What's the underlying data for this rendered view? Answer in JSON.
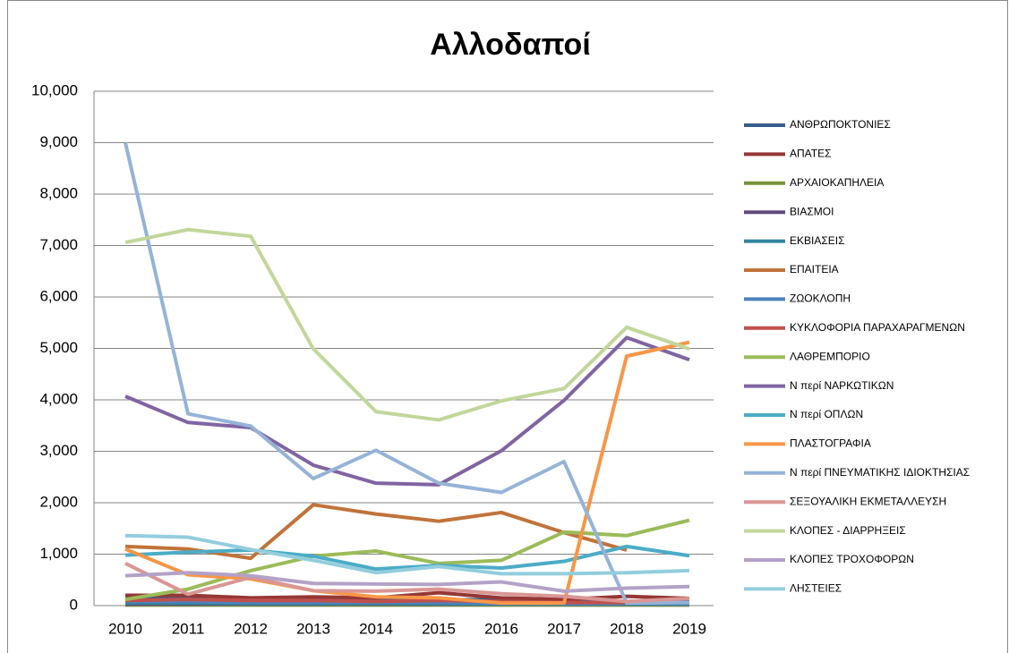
{
  "chart_data": {
    "type": "line",
    "title": "Αλλοδαποί",
    "categories": [
      "2010",
      "2011",
      "2012",
      "2013",
      "2014",
      "2015",
      "2016",
      "2017",
      "2018",
      "2019"
    ],
    "ylim": [
      0,
      10000
    ],
    "yticks": [
      0,
      {
        "value": 1000,
        "label": "1,000"
      },
      {
        "value": 2000,
        "label": "2,000"
      },
      {
        "value": 3000,
        "label": "3,000"
      },
      {
        "value": 4000,
        "label": "4,000"
      },
      {
        "value": 5000,
        "label": "5,000"
      },
      {
        "value": 6000,
        "label": "6,000"
      },
      {
        "value": 7000,
        "label": "7,000"
      },
      {
        "value": 8000,
        "label": "8,000"
      },
      {
        "value": 9000,
        "label": "9,000"
      },
      {
        "value": 10000,
        "label": "10,000"
      }
    ],
    "grid": true,
    "legend": "right",
    "series": [
      {
        "name": "ΑΝΘΡΩΠΟΚΤΟΝΙΕΣ",
        "color": "#385d8a",
        "values": [
          150,
          150,
          120,
          130,
          120,
          110,
          120,
          100,
          40,
          80
        ]
      },
      {
        "name": "ΑΠΑΤΕΣ",
        "color": "#953735",
        "values": [
          200,
          200,
          150,
          170,
          150,
          250,
          150,
          120,
          180,
          140
        ]
      },
      {
        "name": "ΑΡΧΑΙΟΚΑΠΗΛΕΙΑ",
        "color": "#77933c",
        "values": [
          10,
          10,
          10,
          10,
          10,
          10,
          10,
          10,
          10,
          10
        ]
      },
      {
        "name": "ΒΙΑΣΜΟΙ",
        "color": "#604a7b",
        "values": [
          30,
          30,
          30,
          30,
          30,
          30,
          30,
          30,
          30,
          30
        ]
      },
      {
        "name": "ΕΚΒΙΑΣΕΙΣ",
        "color": "#31859c",
        "values": [
          50,
          50,
          40,
          40,
          40,
          40,
          30,
          30,
          30,
          30
        ]
      },
      {
        "name": "ΕΠΑΙΤΕΙΑ",
        "color": "#c0733a",
        "values": [
          1150,
          1100,
          920,
          1960,
          1780,
          1640,
          1810,
          1420,
          1080,
          null
        ]
      },
      {
        "name": "ΖΩΟΚΛΟΠΗ",
        "color": "#4f81bd",
        "values": [
          80,
          80,
          60,
          60,
          60,
          60,
          40,
          40,
          40,
          40
        ]
      },
      {
        "name": "ΚΥΚΛΟΦΟΡΙΑ ΠΑΡΑΧΑΡΑΓΜΕΝΩΝ",
        "color": "#c0504d",
        "values": [
          100,
          120,
          100,
          100,
          80,
          100,
          80,
          60,
          60,
          60
        ]
      },
      {
        "name": "ΛΑΘΡΕΜΠΟΡΙΟ",
        "color": "#9bbb59",
        "values": [
          120,
          320,
          680,
          960,
          1060,
          820,
          880,
          1430,
          1360,
          1660
        ]
      },
      {
        "name": "Ν περί ΝΑΡΚΩΤΙΚΩΝ",
        "color": "#8064a2",
        "values": [
          4070,
          3560,
          3460,
          2730,
          2380,
          2350,
          3010,
          3990,
          5210,
          4780
        ]
      },
      {
        "name": "Ν περί ΟΠΛΩΝ",
        "color": "#4bacc6",
        "values": [
          980,
          1040,
          1080,
          960,
          710,
          780,
          730,
          860,
          1150,
          970
        ]
      },
      {
        "name": "ΠΛΑΣΤΟΓΡΑΦΙΑ",
        "color": "#f79646",
        "values": [
          1100,
          600,
          520,
          290,
          170,
          150,
          50,
          50,
          4850,
          5120
        ]
      },
      {
        "name": "Ν περί ΠΝΕΥΜΑΤΙΚΗΣ  ΙΔΙΟΚΤΗΣΙΑΣ",
        "color": "#95b3d7",
        "values": [
          9000,
          3730,
          3490,
          2470,
          3020,
          2380,
          2200,
          2800,
          50,
          60
        ]
      },
      {
        "name": "ΣΕΞΟΥΑΛΙΚΗ  ΕΚΜΕΤΑΛΛΕΥΣΗ",
        "color": "#d99694",
        "values": [
          820,
          220,
          550,
          290,
          280,
          320,
          230,
          180,
          80,
          140
        ]
      },
      {
        "name": "ΚΛΟΠΕΣ - ΔΙΑΡΡΗΞΕΙΣ",
        "color": "#c3d69b",
        "values": [
          7060,
          7310,
          7180,
          4990,
          3770,
          3610,
          3980,
          4220,
          5410,
          4990
        ]
      },
      {
        "name": "ΚΛΟΠΕΣ ΤΡΟΧΟΦΟΡΩΝ",
        "color": "#b3a2c7",
        "values": [
          580,
          640,
          580,
          430,
          420,
          410,
          460,
          280,
          340,
          370
        ]
      },
      {
        "name": "ΛΗΣΤΕΙΕΣ",
        "color": "#93cddd",
        "values": [
          1360,
          1330,
          1090,
          880,
          640,
          760,
          620,
          620,
          640,
          680
        ]
      }
    ]
  }
}
